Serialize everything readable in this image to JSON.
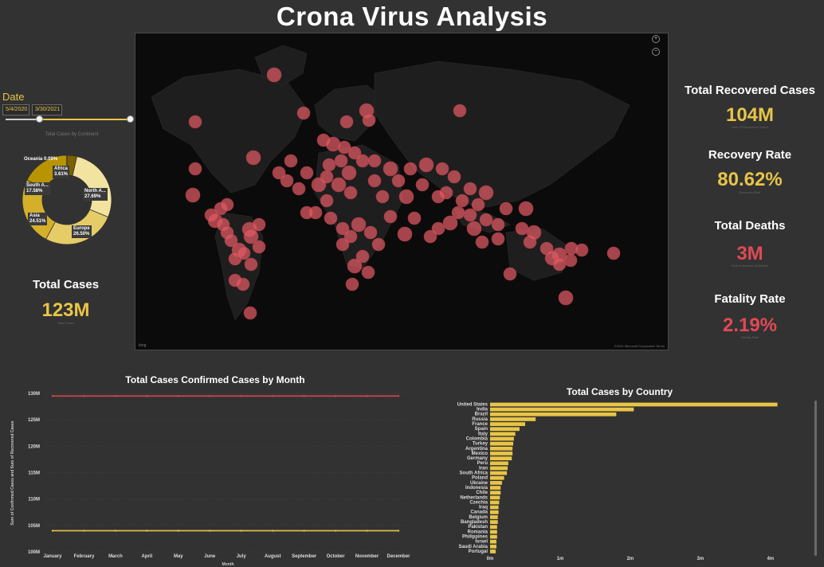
{
  "header": {
    "title": "Crona Virus Analysis"
  },
  "date_filter": {
    "label": "Date",
    "start": "5/4/2020",
    "end": "3/30/2021",
    "range_fraction": [
      0.27,
      1.0
    ]
  },
  "donut": {
    "title": "Total Cases by Continent",
    "segments": [
      {
        "label": "Africa",
        "value_label": "3.61%",
        "value": 3.61,
        "color": "#7a6000"
      },
      {
        "label": "North A...",
        "value_label": "27.69%",
        "value": 27.69,
        "color": "#f3e3a1"
      },
      {
        "label": "Europe",
        "value_label": "26.50%",
        "value": 26.5,
        "color": "#e6cc66"
      },
      {
        "label": "Asia",
        "value_label": "24.51%",
        "value": 24.51,
        "color": "#d4b02a"
      },
      {
        "label": "South A...",
        "value_label": "17.58%",
        "value": 17.58,
        "color": "#b89400"
      },
      {
        "label": "Oceania",
        "value_label": "0.09%",
        "value": 0.09,
        "color": "#8a7000"
      }
    ]
  },
  "kpis": {
    "total_cases": {
      "title": "Total Cases",
      "value": "123M",
      "sub": "Total Cases",
      "color": "#e8c547"
    },
    "total_recovered": {
      "title": "Total Recovered Cases",
      "value": "104M",
      "sub": "Sum of Recovered Cases",
      "color": "#e8c547"
    },
    "recovery_rate": {
      "title": "Recovery Rate",
      "value": "80.62%",
      "sub": "Recovery Rate",
      "color": "#e8c547"
    },
    "total_deaths": {
      "title": "Total Deaths",
      "value": "3M",
      "sub": "Sum of Number of Deaths",
      "color": "#e04a55"
    },
    "fatality_rate": {
      "title": "Fatality Rate",
      "value": "2.19%",
      "sub": "Fatality Rate",
      "color": "#e04a55"
    }
  },
  "map": {
    "attribution_left": "bing",
    "attribution_right": "©2021 Microsoft Corporation Terms",
    "zoom_in_icon": "plus-icon",
    "zoom_out_icon": "minus-icon",
    "bubble_color": "#e05a64"
  },
  "chart_data": [
    {
      "type": "line",
      "title": "Total Cases Confirmed Cases by Month",
      "xlabel": "Month",
      "ylabel": "Sum of Confirmed Cases and Sum of Recovered Cases",
      "categories": [
        "January",
        "February",
        "March",
        "April",
        "May",
        "June",
        "July",
        "August",
        "September",
        "October",
        "November",
        "December"
      ],
      "yticks": [
        "130M",
        "125M",
        "120M",
        "115M",
        "110M",
        "105M",
        "100M"
      ],
      "ylim": [
        100,
        130
      ],
      "series": [
        {
          "values": [
            129.5,
            129.5,
            129.5,
            129.5,
            129.5,
            129.5,
            129.5,
            129.5,
            129.5,
            129.5,
            129.5,
            129.5
          ],
          "color": "#d9444f"
        },
        {
          "values": [
            104,
            104,
            104,
            104,
            104,
            104,
            104,
            104,
            104,
            104,
            104,
            104
          ],
          "color": "#e8c547"
        }
      ]
    },
    {
      "type": "bar",
      "orientation": "horizontal",
      "title": "Total Cases by Country",
      "categories": [
        "United States",
        "India",
        "Brazil",
        "Russia",
        "France",
        "Spain",
        "Italy",
        "Colombia",
        "Turkey",
        "Argentina",
        "Mexico",
        "Germany",
        "Peru",
        "Iran",
        "South Africa",
        "Poland",
        "Ukraine",
        "Indonesia",
        "Chile",
        "Netherlands",
        "Czechia",
        "Iraq",
        "Canada",
        "Belgium",
        "Bangladesh",
        "Pakistan",
        "Romania",
        "Philippines",
        "Israel",
        "Saudi Arabia",
        "Portugal"
      ],
      "values": [
        4.1,
        2.05,
        1.8,
        0.65,
        0.5,
        0.42,
        0.36,
        0.34,
        0.33,
        0.32,
        0.32,
        0.31,
        0.26,
        0.25,
        0.24,
        0.2,
        0.17,
        0.15,
        0.15,
        0.14,
        0.13,
        0.12,
        0.12,
        0.11,
        0.11,
        0.1,
        0.1,
        0.1,
        0.09,
        0.09,
        0.08
      ],
      "xticks": [
        "0m",
        "1m",
        "2m",
        "3m",
        "4m"
      ],
      "xlim": [
        0,
        4.15
      ],
      "color": "#e8c547"
    }
  ]
}
